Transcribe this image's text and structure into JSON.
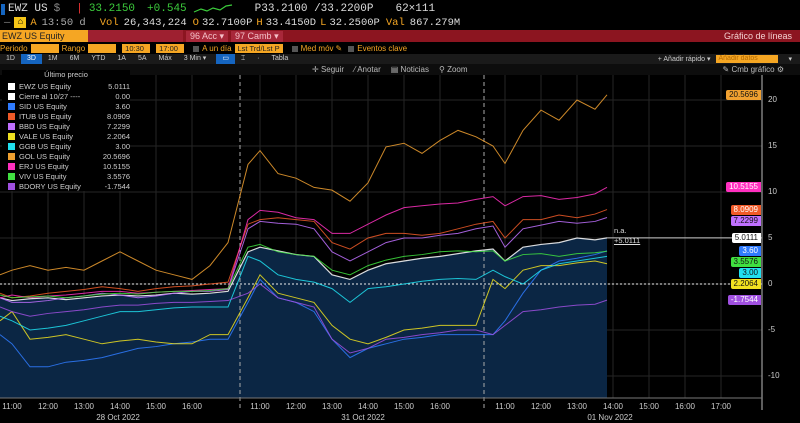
{
  "header": {
    "ticker": "EWZ US",
    "currency": "$",
    "last": "33.2150",
    "change": "+0.545",
    "bidask": "P33.2100 /33.2200P",
    "size": "62×111",
    "time_label": "A",
    "time": "13:50 d",
    "vol_label": "Vol",
    "vol": "26,343,224",
    "open_label": "O",
    "open": "32.7100P",
    "high_label": "H",
    "high": "33.4150D",
    "low_label": "L",
    "low": "32.2500P",
    "val_label": "Val",
    "val": "867.279M"
  },
  "bar": {
    "security": "EWZ US Equity",
    "acc": "96 Acc ▾",
    "camb": "97 Camb ▾",
    "chart_type": "Gráfico de líneas"
  },
  "settings": {
    "periodo": "Periodo",
    "rango": "Rango",
    "start": "10:30",
    "end": "17:00",
    "a_un_dia": "A un día",
    "lst": "Lst Trd/Lst P",
    "med_mov": "Med móv",
    "eventos": "Eventos clave"
  },
  "ranges": [
    "1D",
    "3D",
    "1M",
    "6M",
    "YTD",
    "1A",
    "5A",
    "Máx",
    "3 Min ▾"
  ],
  "ranges_active": "3D",
  "tabla": "Tabla",
  "anadir_rapido": "+ Añadir rápido ▾",
  "anadir_datos": "Añadir datos",
  "toolbar": {
    "seguir": "Seguir",
    "anotar": "Anotar",
    "noticias": "Noticias",
    "zoom": "Zoom",
    "cmb": "Cmb gráfico"
  },
  "legend_title": "Último precio",
  "annotation": {
    "na": "n.a.",
    "value": "+5.0111"
  },
  "chart_data": {
    "type": "line",
    "ylim": [
      -11,
      22
    ],
    "yticks": [
      -10,
      -5,
      0,
      5,
      10,
      15,
      20
    ],
    "grid": true,
    "legend": "top-left",
    "sessions": [
      {
        "date": "28 Oct 2022",
        "times": [
          "10:40",
          "11:00",
          "11:30",
          "12:00",
          "12:30",
          "13:00",
          "13:30",
          "14:00",
          "14:30",
          "15:00",
          "15:30",
          "16:00",
          "16:30",
          "17:00"
        ]
      },
      {
        "date": "31 Oct 2022",
        "times": [
          "10:40",
          "11:00",
          "11:30",
          "12:00",
          "12:30",
          "13:00",
          "13:30",
          "14:00",
          "14:30",
          "15:00",
          "15:30",
          "16:00",
          "16:30",
          "17:00"
        ]
      },
      {
        "date": "01 Nov 2022",
        "times": [
          "10:40",
          "11:00",
          "11:30",
          "12:00",
          "12:30",
          "13:00",
          "13:30",
          "13:50"
        ]
      }
    ],
    "xtick_hours": [
      "11:00",
      "12:00",
      "13:00",
      "14:00",
      "15:00",
      "16:00"
    ],
    "xtick_hours_last": [
      "11:00",
      "12:00",
      "13:00",
      "14:00",
      "15:00",
      "16:00",
      "17:00"
    ],
    "series": [
      {
        "name": "EWZ US Equity",
        "last": "5.0111",
        "color": "#ffffff",
        "area": true,
        "values": [
          -1.5,
          -1.8,
          -1.6,
          -1.5,
          -1.7,
          -1.5,
          -1.3,
          -1.2,
          -1.3,
          -1.2,
          -1,
          -1.1,
          -1,
          -0.8,
          3.5,
          4,
          3.6,
          3.2,
          3,
          1,
          0.5,
          1.5,
          2.2,
          2.5,
          2.8,
          3,
          3.3,
          3.6,
          3.8,
          2.5,
          4,
          4.3,
          4.5,
          5,
          4.8,
          5.0111
        ]
      },
      {
        "name": "Cierre al 10/27 ----",
        "last": "0.00",
        "color": "#ffffff",
        "constant": 0
      },
      {
        "name": "SID US Equity",
        "last": "3.60",
        "color": "#2f7bff",
        "values": [
          -5.5,
          -6.5,
          -9,
          -9,
          -8.5,
          -8.3,
          -8,
          -7.5,
          -7,
          -6.8,
          -6.5,
          -6.3,
          -6,
          -6,
          -2,
          0.5,
          -1.5,
          -2,
          -3,
          -6,
          -8,
          -7,
          -6.5,
          -6,
          -5.8,
          -5.5,
          -5.5,
          -5.5,
          -5.5,
          -4,
          -1,
          1.5,
          2.5,
          2.8,
          3.2,
          3.6
        ]
      },
      {
        "name": "ITUB US Equity",
        "last": "8.0909",
        "color": "#f05a28",
        "values": [
          -1,
          -1.5,
          -1.3,
          -1,
          -0.8,
          -0.6,
          -0.3,
          -0.5,
          -0.8,
          -0.5,
          -0.3,
          -0.2,
          0,
          0.2,
          6.5,
          7,
          7.2,
          7,
          6.8,
          4.5,
          3.8,
          5,
          5.5,
          5.5,
          5.3,
          5.5,
          6,
          6.5,
          6.8,
          5,
          7,
          7,
          7.5,
          7.2,
          7.6,
          8.0909
        ]
      },
      {
        "name": "BBD US Equity",
        "last": "7.2299",
        "color": "#c070ff",
        "values": [
          -1.5,
          -2,
          -2,
          -1.8,
          -1.5,
          -1.3,
          -1,
          -1.2,
          -1.5,
          -1.3,
          -1,
          -0.8,
          -0.8,
          -0.6,
          6,
          6.8,
          6.6,
          6.5,
          6,
          3.5,
          2.5,
          3.5,
          4.5,
          5,
          5,
          5.3,
          5.5,
          6,
          6.3,
          4,
          6,
          6.4,
          6.8,
          6.6,
          6.8,
          7.2299
        ]
      },
      {
        "name": "VALE US Equity",
        "last": "2.2064",
        "color": "#f0e020",
        "values": [
          -4,
          -3,
          -6,
          -5.8,
          -5.5,
          -6,
          -6.5,
          -6.2,
          -6,
          -6.3,
          -6.5,
          -6.5,
          -5.5,
          -5.5,
          -1.5,
          1,
          -1,
          -1.5,
          -2,
          -4.5,
          -6,
          -6.5,
          -5.8,
          -5,
          -4.8,
          -4.5,
          -4.5,
          -4.5,
          0.5,
          -0.5,
          1.5,
          2,
          2,
          2.3,
          2.5,
          2.2064
        ]
      },
      {
        "name": "GGB US Equity",
        "last": "3.00",
        "color": "#20e0f0",
        "values": [
          -3.5,
          -4,
          -5,
          -4.8,
          -4.5,
          -4,
          -3.5,
          -3,
          -3,
          -2.8,
          -2.6,
          -2.5,
          -2.5,
          -2.5,
          3,
          2.5,
          1,
          0.5,
          0.2,
          -0.5,
          -2,
          -0.5,
          -0.3,
          0,
          0.3,
          0.5,
          0.6,
          0.5,
          1.5,
          0.8,
          0,
          1.5,
          2.2,
          2.5,
          2.8,
          3.0
        ]
      },
      {
        "name": "GOL US Equity",
        "last": "20.5696",
        "color": "#f0a030",
        "values": [
          1,
          1.5,
          2,
          1.5,
          1.8,
          1.5,
          2.5,
          3.5,
          2.5,
          1.5,
          1,
          0.5,
          2,
          4.5,
          13,
          14.5,
          12,
          11.5,
          10.5,
          10.2,
          9,
          11,
          14.9,
          15.3,
          14.2,
          15.6,
          16.7,
          16,
          15,
          13.1,
          16.7,
          18.9,
          17.8,
          20,
          19,
          20.5696
        ]
      },
      {
        "name": "ERJ US Equity",
        "last": "10.5155",
        "color": "#ff30c0",
        "values": [
          -1.5,
          -1.2,
          -1.5,
          -1.3,
          -1.2,
          -1,
          -0.8,
          -0.8,
          -1,
          -0.9,
          -0.8,
          -0.7,
          -0.6,
          -0.5,
          7,
          8,
          7.8,
          7.2,
          7,
          5.5,
          5.5,
          6.5,
          7.5,
          8.3,
          8.5,
          8.7,
          8.8,
          9.2,
          9.5,
          8.5,
          9.5,
          9.6,
          9.2,
          9.4,
          9.8,
          10.5155
        ]
      },
      {
        "name": "VIV US Equity",
        "last": "3.5576",
        "color": "#40e040",
        "values": [
          -1.2,
          -1.5,
          -1.4,
          -1.3,
          -1.5,
          -1.3,
          -1.1,
          -1,
          -1.1,
          -0.9,
          -0.8,
          -0.8,
          -0.7,
          -0.5,
          4,
          4.3,
          3.5,
          3.2,
          3,
          1.5,
          1,
          2,
          2.6,
          3,
          3.2,
          3.5,
          3.6,
          3.5,
          3.6,
          2.5,
          3.2,
          3.3,
          3,
          3.3,
          3.4,
          3.5576
        ]
      },
      {
        "name": "BDORY US Equity",
        "last": "-1.7544",
        "color": "#a050e0",
        "values": [
          -2.5,
          -3,
          -3.5,
          -3.2,
          -3,
          -2.8,
          -2.5,
          -2.3,
          -2.3,
          -2.1,
          -2,
          -2,
          -1.9,
          -1.8,
          -1,
          0,
          -1.5,
          -2,
          -2.5,
          -6,
          -7.5,
          -7,
          -6,
          -5.8,
          -5.5,
          -5.3,
          -5,
          -5,
          -5.5,
          -4.5,
          -3,
          -2.8,
          -2.5,
          -2.3,
          -2.2,
          -1.7544
        ]
      }
    ]
  }
}
